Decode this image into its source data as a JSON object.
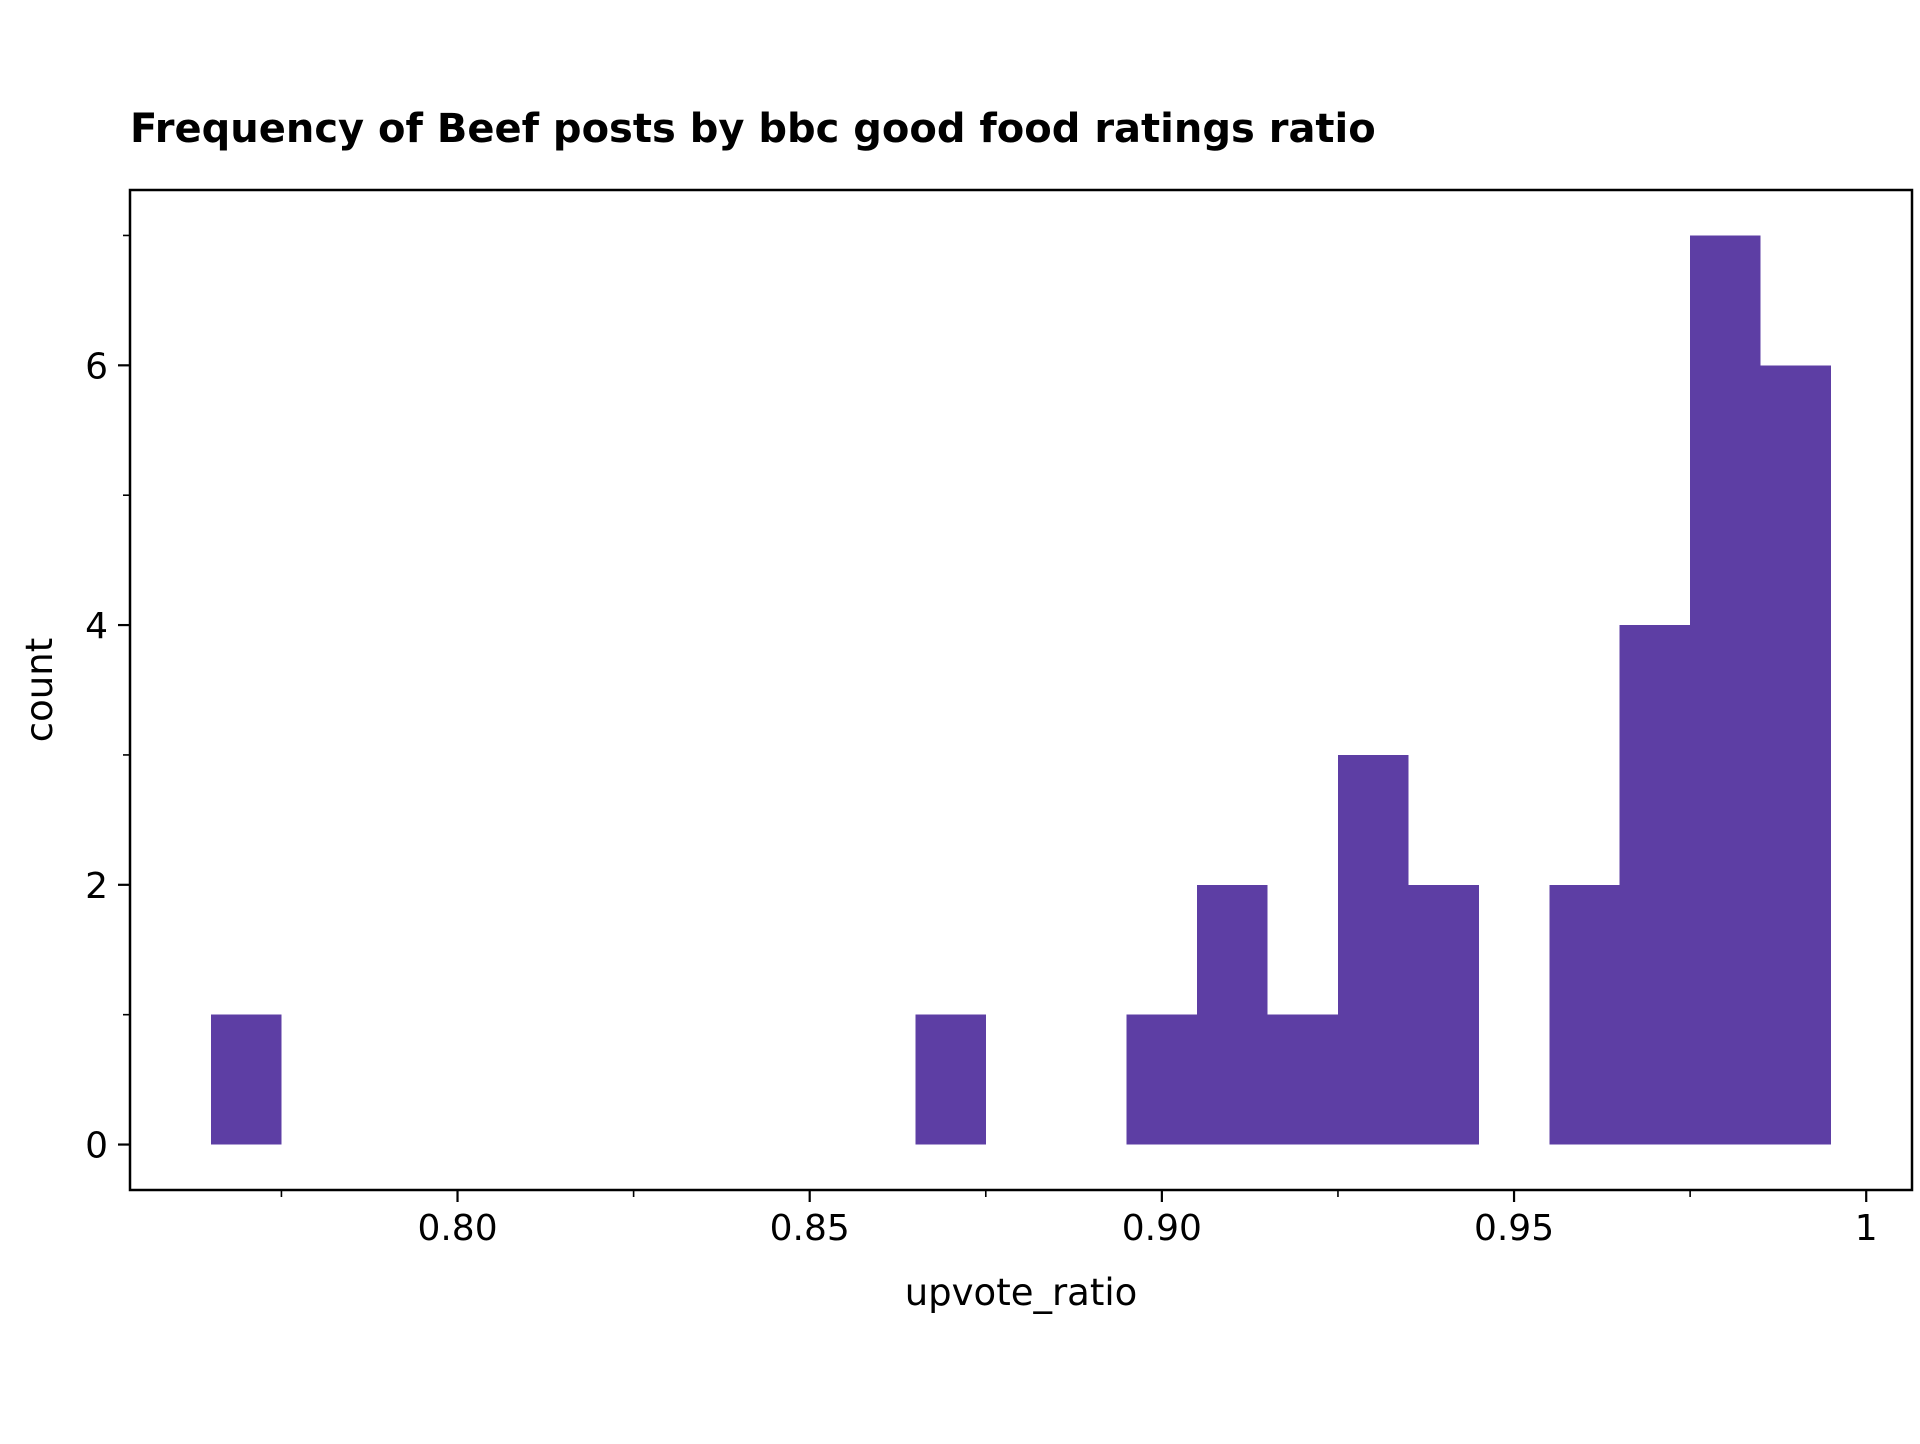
{
  "chart_data": {
    "type": "bar",
    "title": "Frequency of Beef posts by bbc good food ratings ratio",
    "xlabel": "upvote_ratio",
    "ylabel": "count",
    "xlim": [
      0.7535,
      1.0065
    ],
    "ylim": [
      -0.35,
      7.35
    ],
    "grid": false,
    "legend": "none",
    "color": "#5d3ea4",
    "x_major_ticks": [
      0.8,
      0.85,
      0.9,
      0.95,
      1.0
    ],
    "x_tick_labels": [
      "0.80",
      "0.85",
      "0.90",
      "0.95",
      "1"
    ],
    "x_minor_ticks": [
      0.775,
      0.825,
      0.875,
      0.925,
      0.975
    ],
    "y_major_ticks": [
      0,
      2,
      4,
      6
    ],
    "y_tick_labels": [
      "0",
      "2",
      "4",
      "6"
    ],
    "y_minor_ticks": [
      1,
      3,
      5,
      7
    ],
    "bins": [
      {
        "x0": 0.765,
        "x1": 0.775,
        "count": 1
      },
      {
        "x0": 0.865,
        "x1": 0.875,
        "count": 1
      },
      {
        "x0": 0.895,
        "x1": 0.905,
        "count": 1
      },
      {
        "x0": 0.905,
        "x1": 0.915,
        "count": 2
      },
      {
        "x0": 0.915,
        "x1": 0.925,
        "count": 1
      },
      {
        "x0": 0.925,
        "x1": 0.935,
        "count": 3
      },
      {
        "x0": 0.935,
        "x1": 0.945,
        "count": 2
      },
      {
        "x0": 0.955,
        "x1": 0.965,
        "count": 2
      },
      {
        "x0": 0.965,
        "x1": 0.975,
        "count": 4
      },
      {
        "x0": 0.975,
        "x1": 0.985,
        "count": 7
      },
      {
        "x0": 0.985,
        "x1": 0.995,
        "count": 6
      }
    ]
  }
}
